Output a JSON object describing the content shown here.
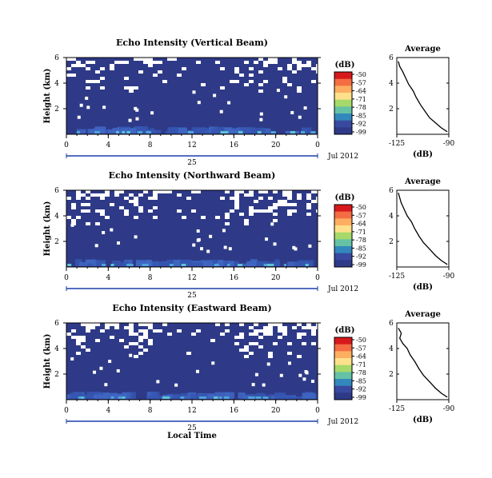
{
  "chart_data": [
    {
      "type": "heatmap",
      "title": "Echo Intensity (Vertical Beam)",
      "ylabel": "Height (km)",
      "yticks": [
        "6",
        "4",
        "2"
      ],
      "ylim": [
        0,
        6
      ],
      "xticks": [
        "0",
        "4",
        "8",
        "12",
        "16",
        "20",
        "0"
      ],
      "xlim": [
        0,
        24
      ],
      "day_label": "25",
      "date_label": "Jul 2012",
      "background_color": "#2e3a87",
      "no_data_color": "#ffffff",
      "colorbar": {
        "unit": "(dB)",
        "ticks": [
          "-50",
          "-57",
          "-64",
          "-71",
          "-78",
          "-85",
          "-92",
          "-99"
        ]
      },
      "average": {
        "title": "Average",
        "xlabel": "(dB)",
        "xticks": [
          "-125",
          "-90"
        ],
        "yticks": [
          "6",
          "4",
          "2"
        ],
        "profile": [
          [
            -91,
            0.2
          ],
          [
            -95,
            0.5
          ],
          [
            -99,
            0.9
          ],
          [
            -103,
            1.3
          ],
          [
            -106,
            1.8
          ],
          [
            -109,
            2.3
          ],
          [
            -112,
            2.9
          ],
          [
            -114,
            3.4
          ],
          [
            -117,
            3.9
          ],
          [
            -119,
            4.4
          ],
          [
            -121,
            4.9
          ],
          [
            -123,
            5.3
          ],
          [
            -124,
            5.7
          ]
        ]
      }
    },
    {
      "type": "heatmap",
      "title": "Echo Intensity (Northward Beam)",
      "ylabel": "Height (km)",
      "yticks": [
        "6",
        "4",
        "2"
      ],
      "ylim": [
        0,
        6
      ],
      "xticks": [
        "0",
        "4",
        "8",
        "12",
        "16",
        "20",
        "0"
      ],
      "xlim": [
        0,
        24
      ],
      "day_label": "25",
      "date_label": "Jul 2012",
      "background_color": "#2e3a87",
      "no_data_color": "#ffffff",
      "colorbar": {
        "unit": "(dB)",
        "ticks": [
          "-50",
          "-57",
          "-64",
          "-71",
          "-78",
          "-85",
          "-92",
          "-99"
        ]
      },
      "average": {
        "title": "Average",
        "xlabel": "(dB)",
        "xticks": [
          "-125",
          "-90"
        ],
        "yticks": [
          "6",
          "4",
          "2"
        ],
        "profile": [
          [
            -91,
            0.2
          ],
          [
            -95,
            0.5
          ],
          [
            -99,
            0.9
          ],
          [
            -103,
            1.4
          ],
          [
            -107,
            1.9
          ],
          [
            -110,
            2.4
          ],
          [
            -113,
            3.0
          ],
          [
            -115,
            3.5
          ],
          [
            -118,
            4.0
          ],
          [
            -120,
            4.5
          ],
          [
            -122,
            5.0
          ],
          [
            -123,
            5.4
          ],
          [
            -124,
            5.8
          ]
        ]
      }
    },
    {
      "type": "heatmap",
      "title": "Echo Intensity (Eastward Beam)",
      "ylabel": "Height (km)",
      "yticks": [
        "6",
        "4",
        "2"
      ],
      "ylim": [
        0,
        6
      ],
      "xticks": [
        "0",
        "4",
        "8",
        "12",
        "16",
        "20",
        "0"
      ],
      "xlim": [
        0,
        24
      ],
      "day_label": "25",
      "date_label": "Jul 2012",
      "xlabel": "Local Time",
      "background_color": "#2e3a87",
      "no_data_color": "#ffffff",
      "colorbar": {
        "unit": "(dB)",
        "ticks": [
          "-50",
          "-57",
          "-64",
          "-71",
          "-78",
          "-85",
          "-92",
          "-99"
        ]
      },
      "average": {
        "title": "Average",
        "xlabel": "(dB)",
        "xticks": [
          "-125",
          "-90"
        ],
        "yticks": [
          "6",
          "4",
          "2"
        ],
        "profile": [
          [
            -91,
            0.2
          ],
          [
            -95,
            0.5
          ],
          [
            -99,
            0.9
          ],
          [
            -103,
            1.4
          ],
          [
            -107,
            1.9
          ],
          [
            -110,
            2.4
          ],
          [
            -113,
            3.0
          ],
          [
            -116,
            3.5
          ],
          [
            -118,
            4.0
          ],
          [
            -121,
            4.4
          ],
          [
            -123,
            4.8
          ],
          [
            -122,
            5.2
          ],
          [
            -124,
            5.6
          ]
        ]
      }
    }
  ]
}
